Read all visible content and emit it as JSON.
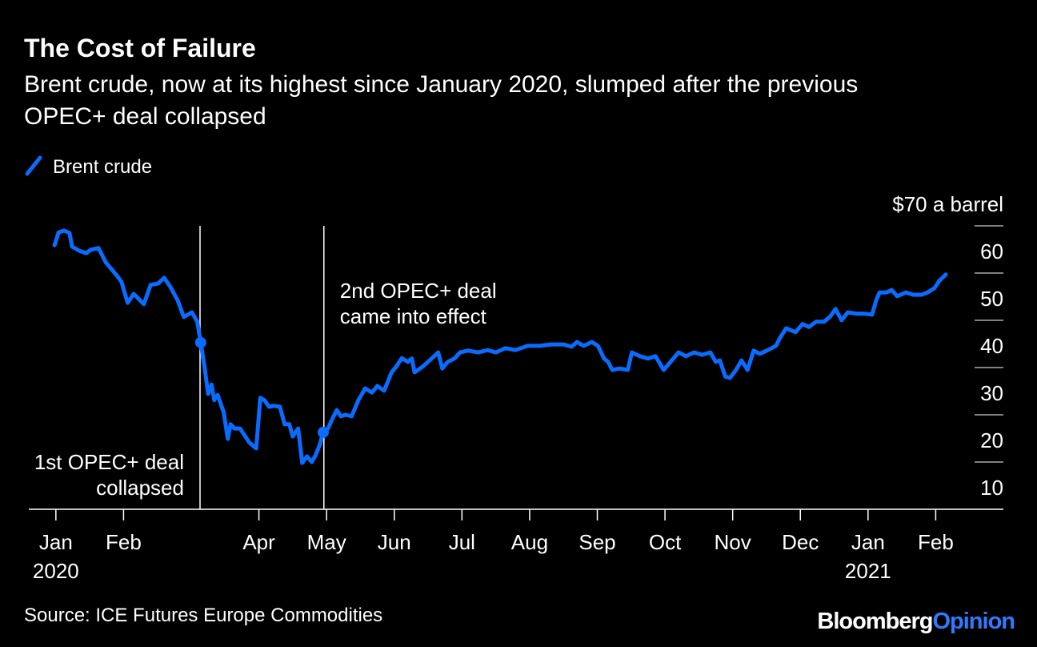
{
  "chart_data": {
    "type": "line",
    "title": "The Cost of Failure",
    "subtitle": "Brent crude, now at its highest since January 2020, slumped after the previous OPEC+ deal collapsed",
    "source": "Source: ICE Futures Europe Commodities",
    "logo": {
      "text": "Bloomberg",
      "accent": "Opinion",
      "accent_color": "#2f7bff"
    },
    "legend": "top-left",
    "xlim": [
      -0.4,
      14
    ],
    "xticks": [
      {
        "value": 0,
        "label": "Jan"
      },
      {
        "value": 1,
        "label": "Feb"
      },
      {
        "value": 3,
        "label": "Apr"
      },
      {
        "value": 4,
        "label": "May"
      },
      {
        "value": 5,
        "label": "Jun"
      },
      {
        "value": 6,
        "label": "Jul"
      },
      {
        "value": 7,
        "label": "Aug"
      },
      {
        "value": 8,
        "label": "Sep"
      },
      {
        "value": 9,
        "label": "Oct"
      },
      {
        "value": 10,
        "label": "Nov"
      },
      {
        "value": 11,
        "label": "Dec"
      },
      {
        "value": 12,
        "label": "Jan"
      },
      {
        "value": 13,
        "label": "Feb"
      }
    ],
    "xtick_years": [
      {
        "value": 0,
        "label": "2020"
      },
      {
        "value": 12,
        "label": "2021"
      }
    ],
    "ylim": [
      10,
      70
    ],
    "yticks": [
      10,
      20,
      30,
      40,
      50,
      60,
      {
        "value": 70,
        "label": "$70 a barrel"
      }
    ],
    "annotations": [
      {
        "text": [
          "1st OPEC+ deal",
          "collapsed"
        ],
        "x": 2.13,
        "align": "end"
      },
      {
        "text": [
          "2nd OPEC+ deal",
          "came into effect"
        ],
        "x": 3.96,
        "align": "start"
      }
    ],
    "x": [
      -0.02,
      0.04,
      0.12,
      0.2,
      0.24,
      0.35,
      0.45,
      0.51,
      0.63,
      0.74,
      0.83,
      0.91,
      0.97,
      1.06,
      1.15,
      1.3,
      1.4,
      1.51,
      1.6,
      1.69,
      1.8,
      1.89,
      2.01,
      2.09,
      2.14,
      2.2,
      2.25,
      2.3,
      2.34,
      2.39,
      2.48,
      2.54,
      2.58,
      2.64,
      2.72,
      2.8,
      2.86,
      2.96,
      3.02,
      3.08,
      3.15,
      3.22,
      3.31,
      3.38,
      3.45,
      3.5,
      3.58,
      3.64,
      3.71,
      3.78,
      3.84,
      3.9,
      3.95,
      4.02,
      4.09,
      4.15,
      4.21,
      4.28,
      4.37,
      4.47,
      4.57,
      4.67,
      4.75,
      4.85,
      4.96,
      5.03,
      5.11,
      5.2,
      5.26,
      5.3,
      5.42,
      5.56,
      5.65,
      5.71,
      5.79,
      5.89,
      5.97,
      6.09,
      6.24,
      6.38,
      6.5,
      6.64,
      6.79,
      6.97,
      7.15,
      7.32,
      7.5,
      7.62,
      7.7,
      7.8,
      7.92,
      8.01,
      8.1,
      8.16,
      8.22,
      8.33,
      8.45,
      8.51,
      8.63,
      8.75,
      8.86,
      8.98,
      9.1,
      9.2,
      9.31,
      9.43,
      9.55,
      9.67,
      9.75,
      9.81,
      9.89,
      9.96,
      10.05,
      10.13,
      10.22,
      10.31,
      10.4,
      10.52,
      10.64,
      10.7,
      10.79,
      10.93,
      11.03,
      11.13,
      11.23,
      11.35,
      11.44,
      11.52,
      11.61,
      11.7,
      11.82,
      11.94,
      12.06,
      12.12,
      12.17,
      12.27,
      12.35,
      12.43,
      12.56,
      12.67,
      12.79,
      12.88,
      12.98,
      13.06,
      13.15
    ],
    "series": [
      {
        "name": "Brent crude",
        "color": "#0a6cff",
        "values": [
          65.9,
          68.6,
          69.0,
          68.5,
          65.6,
          64.7,
          64.2,
          64.9,
          65.3,
          62.2,
          60.7,
          59.3,
          58.1,
          53.7,
          55.6,
          53.4,
          57.5,
          57.8,
          59.0,
          57.1,
          54.2,
          50.7,
          51.7,
          49.7,
          45.3,
          39.8,
          34.4,
          36.4,
          33.1,
          34.2,
          30.5,
          24.9,
          28.0,
          27.1,
          27.1,
          25.4,
          24.1,
          22.9,
          33.6,
          33.1,
          31.7,
          31.9,
          31.7,
          28.0,
          28.0,
          25.4,
          27.1,
          19.8,
          21.2,
          20.0,
          21.5,
          23.7,
          26.3,
          27.1,
          29.3,
          31.0,
          29.7,
          30.0,
          29.7,
          33.1,
          35.6,
          34.7,
          36.1,
          35.1,
          39.0,
          40.2,
          42.0,
          41.2,
          41.9,
          39.0,
          40.2,
          42.0,
          43.2,
          39.8,
          41.2,
          41.9,
          43.2,
          43.6,
          43.2,
          43.7,
          43.2,
          44.1,
          43.7,
          44.6,
          44.6,
          44.9,
          44.9,
          44.4,
          45.4,
          44.6,
          45.4,
          44.6,
          41.9,
          41.2,
          39.5,
          39.8,
          39.5,
          43.2,
          42.4,
          41.9,
          42.4,
          39.5,
          41.5,
          43.2,
          42.4,
          43.2,
          42.7,
          43.2,
          41.2,
          41.5,
          38.1,
          37.8,
          39.5,
          41.5,
          39.5,
          43.6,
          42.9,
          43.7,
          44.6,
          46.3,
          48.3,
          47.5,
          49.2,
          48.6,
          49.7,
          49.7,
          50.8,
          52.4,
          50.0,
          51.7,
          51.4,
          51.4,
          51.2,
          54.2,
          55.9,
          55.9,
          56.4,
          55.1,
          55.9,
          55.4,
          55.4,
          55.9,
          56.8,
          58.5,
          59.7
        ]
      }
    ]
  }
}
